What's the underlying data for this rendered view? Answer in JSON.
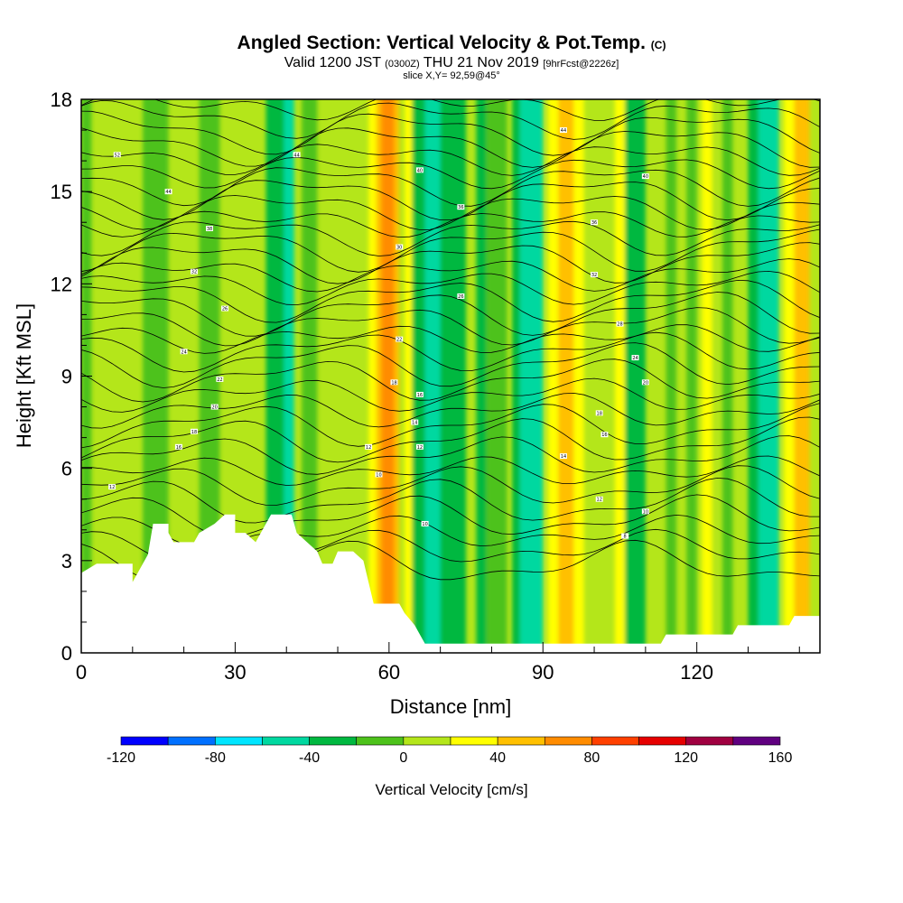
{
  "title": {
    "main": "Angled Section: Vertical Velocity & Pot.Temp.",
    "units_tag": "(C)",
    "valid_prefix": "Valid 1200 JST",
    "valid_utc": "(0300Z)",
    "valid_date": "THU 21 Nov 2019",
    "forecast": "[9hrFcst@2226z]",
    "slice": "slice X,Y= 92,59@45°"
  },
  "chart_data": {
    "type": "heatmap",
    "xlabel": "Distance [nm]",
    "ylabel": "Height [Kft MSL]",
    "xlim": [
      0,
      144
    ],
    "ylim": [
      0,
      18
    ],
    "xticks": [
      0,
      30,
      60,
      90,
      120
    ],
    "yticks": [
      0,
      3,
      6,
      9,
      12,
      15,
      18
    ],
    "colorbar": {
      "title": "Vertical Velocity [cm/s]",
      "min": -120,
      "max": 160,
      "step": 20,
      "tick_labels": [
        -120,
        -80,
        -40,
        0,
        40,
        80,
        120,
        160
      ],
      "colors": [
        "#0000ff",
        "#0070ff",
        "#00e5ff",
        "#00d8a0",
        "#00b840",
        "#4dc21a",
        "#b4e61a",
        "#ffff00",
        "#ffc000",
        "#ff8c00",
        "#ff4000",
        "#e60000",
        "#a00040",
        "#600080"
      ]
    },
    "background_color": "#b4e61a",
    "velocity_bands": [
      {
        "x0": 0,
        "x1": 2,
        "value": -10
      },
      {
        "x0": 12,
        "x1": 17,
        "value": -10
      },
      {
        "x0": 23,
        "x1": 27,
        "value": -10
      },
      {
        "x0": 36,
        "x1": 40,
        "value": -30
      },
      {
        "x0": 39.5,
        "x1": 41.5,
        "value": -50
      },
      {
        "x0": 43,
        "x1": 46,
        "value": -10
      },
      {
        "x0": 56,
        "x1": 57.5,
        "value": 30
      },
      {
        "x0": 57.5,
        "x1": 62,
        "value": 50
      },
      {
        "x0": 58.5,
        "x1": 61,
        "value": 70
      },
      {
        "x0": 63,
        "x1": 64.5,
        "value": 30
      },
      {
        "x0": 64.5,
        "x1": 67,
        "value": -30
      },
      {
        "x0": 67,
        "x1": 71,
        "value": -50
      },
      {
        "x0": 70,
        "x1": 75,
        "value": -30
      },
      {
        "x0": 77,
        "x1": 79,
        "value": -30
      },
      {
        "x0": 79,
        "x1": 83,
        "value": -10
      },
      {
        "x0": 84,
        "x1": 85.5,
        "value": -30
      },
      {
        "x0": 85.5,
        "x1": 90,
        "value": -50
      },
      {
        "x0": 91,
        "x1": 93,
        "value": 30
      },
      {
        "x0": 93,
        "x1": 96,
        "value": 50
      },
      {
        "x0": 96,
        "x1": 98,
        "value": 30
      },
      {
        "x0": 104,
        "x1": 106,
        "value": 30
      },
      {
        "x0": 106,
        "x1": 110,
        "value": -30
      },
      {
        "x0": 114,
        "x1": 116,
        "value": -10
      },
      {
        "x0": 118,
        "x1": 120,
        "value": -10
      },
      {
        "x0": 121,
        "x1": 123,
        "value": 30
      },
      {
        "x0": 125,
        "x1": 127,
        "value": -10
      },
      {
        "x0": 130,
        "x1": 132,
        "value": -30
      },
      {
        "x0": 132,
        "x1": 136,
        "value": -50
      },
      {
        "x0": 137,
        "x1": 139,
        "value": 30
      },
      {
        "x0": 139,
        "x1": 142,
        "value": 50
      }
    ],
    "terrain": [
      [
        0,
        2.6
      ],
      [
        3,
        2.9
      ],
      [
        10,
        2.9
      ],
      [
        10,
        2.3
      ],
      [
        11,
        2.6
      ],
      [
        12,
        2.9
      ],
      [
        13,
        3.2
      ],
      [
        14,
        4.2
      ],
      [
        17,
        4.2
      ],
      [
        17,
        3.9
      ],
      [
        18,
        3.6
      ],
      [
        22,
        3.6
      ],
      [
        23,
        3.9
      ],
      [
        26,
        4.2
      ],
      [
        28,
        4.5
      ],
      [
        30,
        4.5
      ],
      [
        30,
        3.9
      ],
      [
        32,
        3.9
      ],
      [
        34,
        3.6
      ],
      [
        35,
        3.9
      ],
      [
        37,
        4.5
      ],
      [
        41,
        4.5
      ],
      [
        42,
        3.9
      ],
      [
        44,
        3.6
      ],
      [
        46,
        3.3
      ],
      [
        47,
        2.9
      ],
      [
        49,
        2.9
      ],
      [
        50,
        3.3
      ],
      [
        53,
        3.3
      ],
      [
        55,
        3.0
      ],
      [
        56,
        2.3
      ],
      [
        57,
        1.6
      ],
      [
        62,
        1.6
      ],
      [
        63,
        1.3
      ],
      [
        65,
        0.9
      ],
      [
        67,
        0.3
      ],
      [
        113,
        0.3
      ],
      [
        114,
        0.6
      ],
      [
        127,
        0.6
      ],
      [
        128,
        0.9
      ],
      [
        138,
        0.9
      ],
      [
        139,
        1.2
      ],
      [
        144,
        1.2
      ]
    ],
    "isentropes": {
      "count": 34,
      "labels": [
        {
          "x": 7,
          "y": 16.2,
          "text": "52"
        },
        {
          "x": 17,
          "y": 15.0,
          "text": "44"
        },
        {
          "x": 25,
          "y": 13.8,
          "text": "38"
        },
        {
          "x": 22,
          "y": 12.4,
          "text": "32"
        },
        {
          "x": 28,
          "y": 11.2,
          "text": "26"
        },
        {
          "x": 20,
          "y": 9.8,
          "text": "24"
        },
        {
          "x": 27,
          "y": 8.9,
          "text": "22"
        },
        {
          "x": 26,
          "y": 8.0,
          "text": "20"
        },
        {
          "x": 22,
          "y": 7.2,
          "text": "18"
        },
        {
          "x": 19,
          "y": 6.7,
          "text": "16"
        },
        {
          "x": 6,
          "y": 5.4,
          "text": "12"
        },
        {
          "x": 42,
          "y": 16.2,
          "text": "44"
        },
        {
          "x": 66,
          "y": 15.7,
          "text": "40"
        },
        {
          "x": 74,
          "y": 14.5,
          "text": "36"
        },
        {
          "x": 62,
          "y": 13.2,
          "text": "30"
        },
        {
          "x": 74,
          "y": 11.6,
          "text": "26"
        },
        {
          "x": 62,
          "y": 10.2,
          "text": "22"
        },
        {
          "x": 61,
          "y": 8.8,
          "text": "18"
        },
        {
          "x": 66,
          "y": 8.4,
          "text": "16"
        },
        {
          "x": 65,
          "y": 7.5,
          "text": "14"
        },
        {
          "x": 56,
          "y": 6.7,
          "text": "12"
        },
        {
          "x": 58,
          "y": 5.8,
          "text": "10"
        },
        {
          "x": 66,
          "y": 6.7,
          "text": "12"
        },
        {
          "x": 67,
          "y": 4.2,
          "text": "10"
        },
        {
          "x": 94,
          "y": 17.0,
          "text": "44"
        },
        {
          "x": 110,
          "y": 15.5,
          "text": "40"
        },
        {
          "x": 100,
          "y": 14.0,
          "text": "36"
        },
        {
          "x": 100,
          "y": 12.3,
          "text": "32"
        },
        {
          "x": 105,
          "y": 10.7,
          "text": "28"
        },
        {
          "x": 108,
          "y": 9.6,
          "text": "24"
        },
        {
          "x": 110,
          "y": 8.8,
          "text": "20"
        },
        {
          "x": 101,
          "y": 7.8,
          "text": "18"
        },
        {
          "x": 102,
          "y": 7.1,
          "text": "16"
        },
        {
          "x": 94,
          "y": 6.4,
          "text": "14"
        },
        {
          "x": 101,
          "y": 5.0,
          "text": "12"
        },
        {
          "x": 110,
          "y": 4.6,
          "text": "10"
        },
        {
          "x": 106,
          "y": 3.8,
          "text": "8"
        }
      ]
    }
  }
}
